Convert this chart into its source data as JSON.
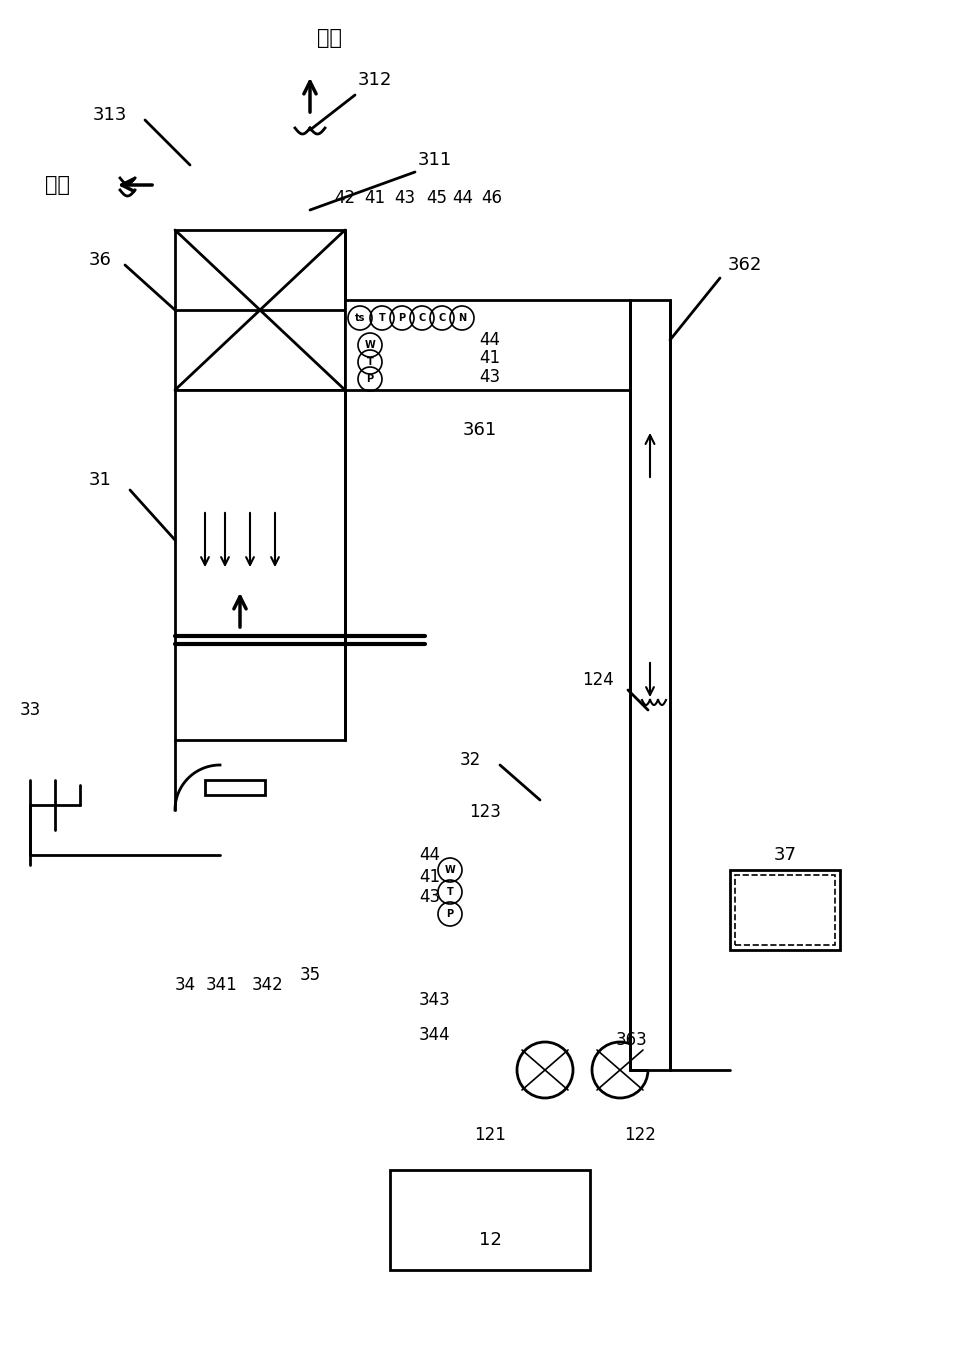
{
  "bg_color": "#ffffff",
  "line_color": "#000000",
  "line_width": 2.0,
  "fig_width": 9.6,
  "fig_height": 13.7,
  "labels": {
    "paifeng": "排风",
    "huifeng": "回风",
    "313": "313",
    "312": "312",
    "311": "311",
    "36": "36",
    "42": "42",
    "41a": "41",
    "43a": "43",
    "45": "45",
    "44a": "44",
    "46": "46",
    "362": "362",
    "361": "361",
    "31": "31",
    "124": "124",
    "32": "32",
    "44b": "44",
    "41b": "41",
    "43b": "43",
    "123": "123",
    "33": "33",
    "34": "34",
    "341": "341",
    "342": "342",
    "35": "35",
    "343": "343",
    "344": "344",
    "363": "363",
    "37": "37",
    "121": "121",
    "122": "122",
    "12": "12"
  }
}
